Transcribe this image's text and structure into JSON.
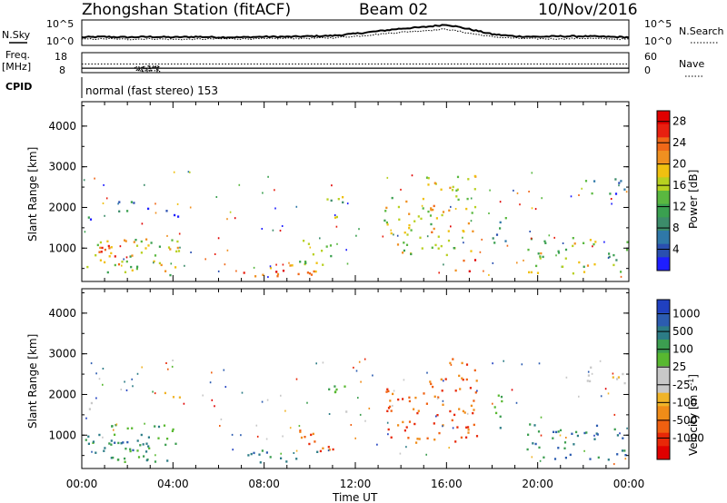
{
  "header": {
    "station": "Zhongshan Station (fitACF)",
    "beam": "Beam 02",
    "date": "10/Nov/2016"
  },
  "left_labels": {
    "nsky": "N.Sky",
    "freq": "Freq.",
    "freq_unit": "[MHz]",
    "cpid": "CPID"
  },
  "right_labels": {
    "nsearch": "N.Search",
    "nave": "Nave"
  },
  "cpid_text": "normal (fast stereo) 153",
  "axis": {
    "xlabel": "Time UT",
    "ylabel": "Slant Range [km]"
  },
  "colors": {
    "power": [
      "#1e1eff",
      "#2a4fb0",
      "#2f78a8",
      "#3c8c6a",
      "#3aa050",
      "#5ab840",
      "#b8d020",
      "#f0c010",
      "#f09020",
      "#f06818",
      "#e82010",
      "#e00000"
    ],
    "velocity": [
      "#e00000",
      "#e82808",
      "#f06010",
      "#f08c18",
      "#f0b428",
      "#c8c8c8",
      "#c8c8c8",
      "#58b830",
      "#3c9e50",
      "#2c7c86",
      "#2c5cb0",
      "#2040c0"
    ]
  },
  "chart_data": [
    {
      "type": "line",
      "panel": "noise",
      "series": [
        {
          "name": "N.Sky"
        },
        {
          "name": "N.Search"
        }
      ],
      "x": [
        0,
        1,
        2,
        3,
        4,
        5,
        6,
        7,
        8,
        9,
        10,
        11,
        12,
        13,
        14,
        15,
        16,
        17,
        18,
        19,
        20,
        21,
        22,
        23,
        24
      ],
      "y_sky": [
        1.6,
        1.7,
        1.6,
        1.7,
        1.6,
        1.7,
        1.6,
        1.6,
        1.7,
        1.7,
        1.8,
        1.9,
        2.3,
        2.8,
        3.3,
        3.6,
        4.1,
        3.2,
        2.2,
        1.8,
        1.7,
        1.8,
        1.8,
        1.7,
        1.6
      ],
      "y_search": [
        1.2,
        1.3,
        1.2,
        1.3,
        1.2,
        1.2,
        1.3,
        1.3,
        1.3,
        1.4,
        1.4,
        1.5,
        1.8,
        2.2,
        2.6,
        2.9,
        3.2,
        2.4,
        1.7,
        1.4,
        1.3,
        1.3,
        1.4,
        1.3,
        1.2
      ],
      "left_ticks": [
        "10^5",
        "10^0"
      ],
      "right_ticks": [
        "10^5",
        "10^0"
      ]
    },
    {
      "type": "line",
      "panel": "frequency",
      "series": [
        {
          "name": "Freq."
        },
        {
          "name": "Nave"
        }
      ],
      "left_ticks": [
        "18",
        "8"
      ],
      "right_ticks": [
        "60",
        "0"
      ],
      "ylim_freq": [
        8,
        18
      ],
      "ylim_nave": [
        0,
        60
      ],
      "freq_value": 10.2,
      "nave_value": 26
    },
    {
      "type": "heatmap",
      "panel": "power",
      "title": "Power [dB]",
      "xlim": [
        0,
        24
      ],
      "ylim": [
        180,
        4600
      ],
      "x_ticks": [
        "00:00",
        "04:00",
        "08:00",
        "12:00",
        "16:00",
        "20:00",
        "00:00"
      ],
      "y_ticks": [
        "1000",
        "2000",
        "3000",
        "4000"
      ],
      "colorbar": {
        "label": "Power [dB]",
        "ticks": [
          "4",
          "8",
          "12",
          "16",
          "20",
          "24",
          "28"
        ],
        "range": [
          0,
          30
        ]
      },
      "regions": [
        {
          "t0": 0.1,
          "t1": 4.3,
          "r0": 350,
          "r1": 1300,
          "v": 17
        },
        {
          "t0": 0.7,
          "t1": 3.3,
          "r0": 800,
          "r1": 1200,
          "v": 22
        },
        {
          "t0": 0.0,
          "t1": 0.4,
          "r0": 1550,
          "r1": 1900,
          "v": 8
        },
        {
          "t0": 3.6,
          "t1": 4.4,
          "r0": 1800,
          "r1": 2100,
          "v": 6
        },
        {
          "t0": 1.5,
          "t1": 3.0,
          "r0": 1900,
          "r1": 2250,
          "v": 7
        },
        {
          "t0": 7.0,
          "t1": 10.3,
          "r0": 320,
          "r1": 650,
          "v": 22
        },
        {
          "t0": 8.2,
          "t1": 10.2,
          "r0": 320,
          "r1": 480,
          "v": 27
        },
        {
          "t0": 9.5,
          "t1": 11.0,
          "r0": 600,
          "r1": 1400,
          "v": 14
        },
        {
          "t0": 10.7,
          "t1": 11.6,
          "r0": 1600,
          "r1": 2300,
          "v": 14
        },
        {
          "t0": 13.2,
          "t1": 15.0,
          "r0": 800,
          "r1": 2300,
          "v": 16
        },
        {
          "t0": 15.1,
          "t1": 17.3,
          "r0": 850,
          "r1": 2900,
          "v": 17
        },
        {
          "t0": 16.3,
          "t1": 17.3,
          "r0": 450,
          "r1": 800,
          "v": 27
        },
        {
          "t0": 18.0,
          "t1": 18.6,
          "r0": 1000,
          "r1": 2100,
          "v": 10
        },
        {
          "t0": 19.5,
          "t1": 22.7,
          "r0": 400,
          "r1": 1300,
          "v": 16
        },
        {
          "t0": 22.0,
          "t1": 23.8,
          "r0": 2300,
          "r1": 2750,
          "v": 8
        },
        {
          "t0": 23.0,
          "t1": 23.9,
          "r0": 350,
          "r1": 1200,
          "v": 12
        }
      ]
    },
    {
      "type": "heatmap",
      "panel": "velocity",
      "title": "Velocity [m s-1]",
      "xlim": [
        0,
        24
      ],
      "ylim": [
        180,
        4600
      ],
      "x_ticks": [
        "00:00",
        "04:00",
        "08:00",
        "12:00",
        "16:00",
        "20:00",
        "00:00"
      ],
      "y_ticks": [
        "1000",
        "2000",
        "3000",
        "4000"
      ],
      "colorbar": {
        "label": "Velocity [m s",
        "label_sup": "-1",
        "label_end": "]",
        "ticks": [
          "1000",
          "500",
          "100",
          "25",
          "-25",
          "-100",
          "-500",
          "-1000"
        ]
      },
      "regions": [
        {
          "t0": 0.1,
          "t1": 4.3,
          "r0": 350,
          "r1": 1300,
          "v": 8
        },
        {
          "t0": 0.7,
          "t1": 3.3,
          "r0": 400,
          "r1": 900,
          "v": 9
        },
        {
          "t0": 0.0,
          "t1": 0.4,
          "r0": 1550,
          "r1": 1900,
          "v": 5
        },
        {
          "t0": 3.6,
          "t1": 4.4,
          "r0": 1800,
          "r1": 2100,
          "v": 5
        },
        {
          "t0": 7.0,
          "t1": 10.3,
          "r0": 320,
          "r1": 650,
          "v": 9
        },
        {
          "t0": 9.5,
          "t1": 11.0,
          "r0": 600,
          "r1": 1400,
          "v": 2
        },
        {
          "t0": 10.7,
          "t1": 11.6,
          "r0": 1600,
          "r1": 2300,
          "v": 7
        },
        {
          "t0": 13.2,
          "t1": 15.0,
          "r0": 800,
          "r1": 2300,
          "v": 2
        },
        {
          "t0": 15.1,
          "t1": 17.3,
          "r0": 850,
          "r1": 2900,
          "v": 2
        },
        {
          "t0": 18.0,
          "t1": 18.6,
          "r0": 1000,
          "r1": 2100,
          "v": 8
        },
        {
          "t0": 19.5,
          "t1": 22.7,
          "r0": 400,
          "r1": 1300,
          "v": 9
        },
        {
          "t0": 22.0,
          "t1": 23.8,
          "r0": 2300,
          "r1": 2750,
          "v": 5
        },
        {
          "t0": 23.0,
          "t1": 23.9,
          "r0": 350,
          "r1": 1200,
          "v": 9
        }
      ]
    }
  ]
}
